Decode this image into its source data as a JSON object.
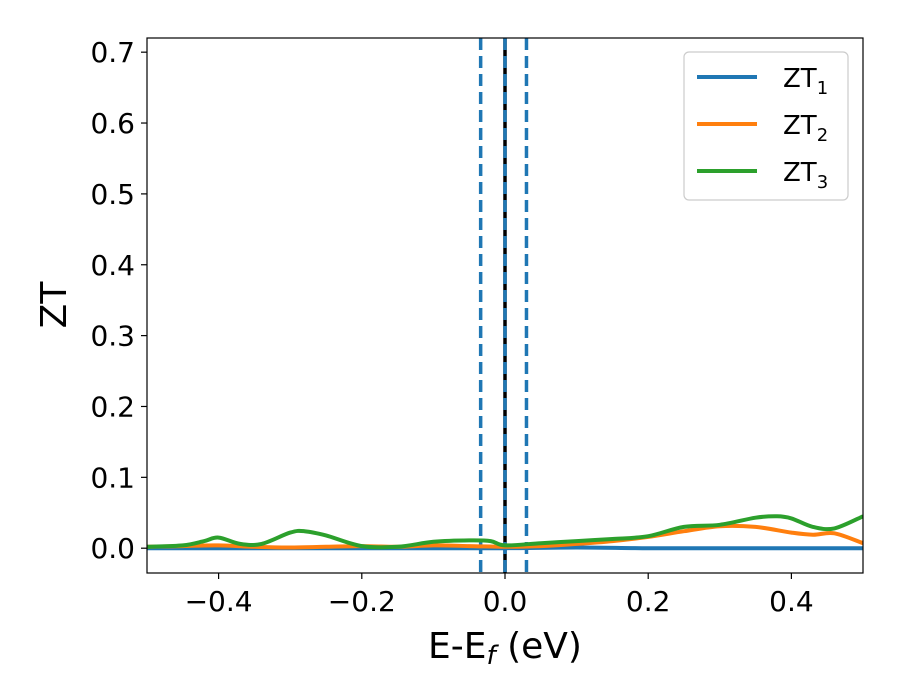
{
  "chart_data": {
    "type": "line",
    "xlabel": {
      "main": "E-E",
      "sub": "f",
      "unit": " (eV)"
    },
    "ylabel": "ZT",
    "xlim": [
      -0.5,
      0.5
    ],
    "ylim": [
      -0.035,
      0.72
    ],
    "x_ticks": [
      -0.4,
      -0.2,
      0.0,
      0.2,
      0.4
    ],
    "x_tick_labels": [
      "−0.4",
      "−0.2",
      "0.0",
      "0.2",
      "0.4"
    ],
    "y_ticks": [
      0.0,
      0.1,
      0.2,
      0.3,
      0.4,
      0.5,
      0.6,
      0.7
    ],
    "y_tick_labels": [
      "0.0",
      "0.1",
      "0.2",
      "0.3",
      "0.4",
      "0.5",
      "0.6",
      "0.7"
    ],
    "grid": false,
    "legend_position": "top-right",
    "series": [
      {
        "name": "ZT",
        "sub": "1",
        "color": "#1f77b4",
        "x": [
          -0.5,
          -0.4,
          -0.3,
          -0.2,
          -0.1,
          0.0,
          0.1,
          0.2,
          0.3,
          0.4,
          0.5
        ],
        "y": [
          0.0,
          0.0,
          0.0,
          0.0,
          0.0,
          0.0,
          0.001,
          0.0,
          0.0,
          0.0,
          0.0
        ]
      },
      {
        "name": "ZT",
        "sub": "2",
        "color": "#ff7f0e",
        "x": [
          -0.5,
          -0.45,
          -0.4,
          -0.35,
          -0.3,
          -0.25,
          -0.2,
          -0.15,
          -0.1,
          -0.05,
          0.0,
          0.05,
          0.1,
          0.15,
          0.2,
          0.25,
          0.3,
          0.35,
          0.4,
          0.43,
          0.46,
          0.5
        ],
        "y": [
          0.002,
          0.003,
          0.004,
          0.002,
          0.001,
          0.002,
          0.003,
          0.002,
          0.004,
          0.003,
          0.002,
          0.003,
          0.006,
          0.01,
          0.016,
          0.024,
          0.031,
          0.03,
          0.022,
          0.019,
          0.021,
          0.007
        ]
      },
      {
        "name": "ZT",
        "sub": "3",
        "color": "#2ca02c",
        "x": [
          -0.5,
          -0.45,
          -0.42,
          -0.4,
          -0.37,
          -0.34,
          -0.3,
          -0.28,
          -0.25,
          -0.2,
          -0.15,
          -0.1,
          -0.05,
          -0.02,
          0.0,
          0.05,
          0.1,
          0.15,
          0.2,
          0.25,
          0.3,
          0.35,
          0.38,
          0.4,
          0.43,
          0.46,
          0.5
        ],
        "y": [
          0.002,
          0.004,
          0.01,
          0.015,
          0.006,
          0.006,
          0.022,
          0.024,
          0.018,
          0.003,
          0.002,
          0.009,
          0.011,
          0.01,
          0.004,
          0.007,
          0.01,
          0.013,
          0.017,
          0.03,
          0.033,
          0.043,
          0.045,
          0.042,
          0.03,
          0.028,
          0.045
        ]
      }
    ],
    "vlines": [
      {
        "x": 0.0,
        "style": "solid",
        "color": "#000000"
      },
      {
        "x": 0.0,
        "style": "dashed",
        "color": "#1f77b4"
      },
      {
        "x": -0.034,
        "style": "dashed",
        "color": "#1f77b4"
      },
      {
        "x": 0.03,
        "style": "dashed",
        "color": "#1f77b4"
      }
    ]
  }
}
